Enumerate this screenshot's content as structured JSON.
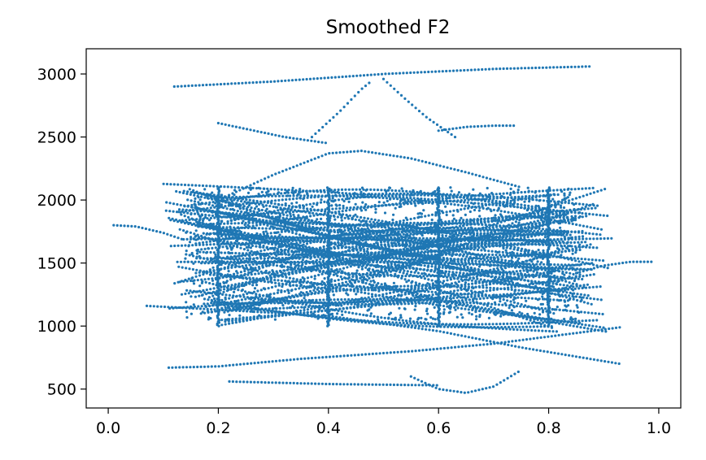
{
  "chart_data": {
    "type": "scatter",
    "title": "Smoothed F2",
    "xlabel": "",
    "ylabel": "",
    "xlim": [
      -0.04,
      1.04
    ],
    "ylim": [
      350,
      3200
    ],
    "xticks": [
      0.0,
      0.2,
      0.4,
      0.6,
      0.8,
      1.0
    ],
    "xtick_labels": [
      "0.0",
      "0.2",
      "0.4",
      "0.6",
      "0.8",
      "1.0"
    ],
    "yticks": [
      500,
      1000,
      1500,
      2000,
      2500,
      3000
    ],
    "ytick_labels": [
      "500",
      "1000",
      "1500",
      "2000",
      "2500",
      "3000"
    ],
    "grid": false,
    "legend": "none",
    "marker_color": "#1f77b4",
    "series": [
      {
        "x": [
          0.12,
          0.3,
          0.5,
          0.7,
          0.88
        ],
        "y": [
          2900,
          2940,
          3000,
          3040,
          3060
        ]
      },
      {
        "x": [
          0.01,
          0.05,
          0.1,
          0.14
        ],
        "y": [
          1800,
          1790,
          1740,
          1680
        ]
      },
      {
        "x": [
          0.85,
          0.9,
          0.95,
          0.99
        ],
        "y": [
          1420,
          1480,
          1510,
          1510
        ]
      },
      {
        "x": [
          0.2,
          0.3,
          0.4,
          0.46,
          0.55,
          0.65,
          0.75
        ],
        "y": [
          2000,
          2200,
          2370,
          2390,
          2330,
          2220,
          2100
        ]
      },
      {
        "x": [
          0.11,
          0.2,
          0.35,
          0.55,
          0.7,
          0.93
        ],
        "y": [
          670,
          680,
          740,
          800,
          860,
          990
        ]
      },
      {
        "x": [
          0.07,
          0.2,
          0.4,
          0.6,
          0.75,
          0.93
        ],
        "y": [
          1160,
          1130,
          1080,
          960,
          830,
          700
        ]
      },
      {
        "x": [
          0.2,
          0.32,
          0.4
        ],
        "y": [
          2610,
          2500,
          2450
        ]
      },
      {
        "x": [
          0.37,
          0.42,
          0.46,
          0.48
        ],
        "y": [
          2500,
          2700,
          2880,
          2950
        ]
      },
      {
        "x": [
          0.5,
          0.54,
          0.58,
          0.63
        ],
        "y": [
          2960,
          2800,
          2650,
          2500
        ]
      },
      {
        "x": [
          0.6,
          0.65,
          0.7,
          0.74
        ],
        "y": [
          2550,
          2580,
          2590,
          2590
        ]
      },
      {
        "x": [
          0.55,
          0.6,
          0.65,
          0.7,
          0.75
        ],
        "y": [
          600,
          500,
          470,
          520,
          650
        ]
      },
      {
        "x": [
          0.22,
          0.4,
          0.6
        ],
        "y": [
          560,
          540,
          530
        ]
      }
    ],
    "point_cloud": {
      "x_range": [
        0.1,
        0.92
      ],
      "y_range": [
        600,
        2250
      ],
      "density": "high",
      "vertical_columns_x": [
        0.2,
        0.4,
        0.6,
        0.8
      ]
    }
  }
}
